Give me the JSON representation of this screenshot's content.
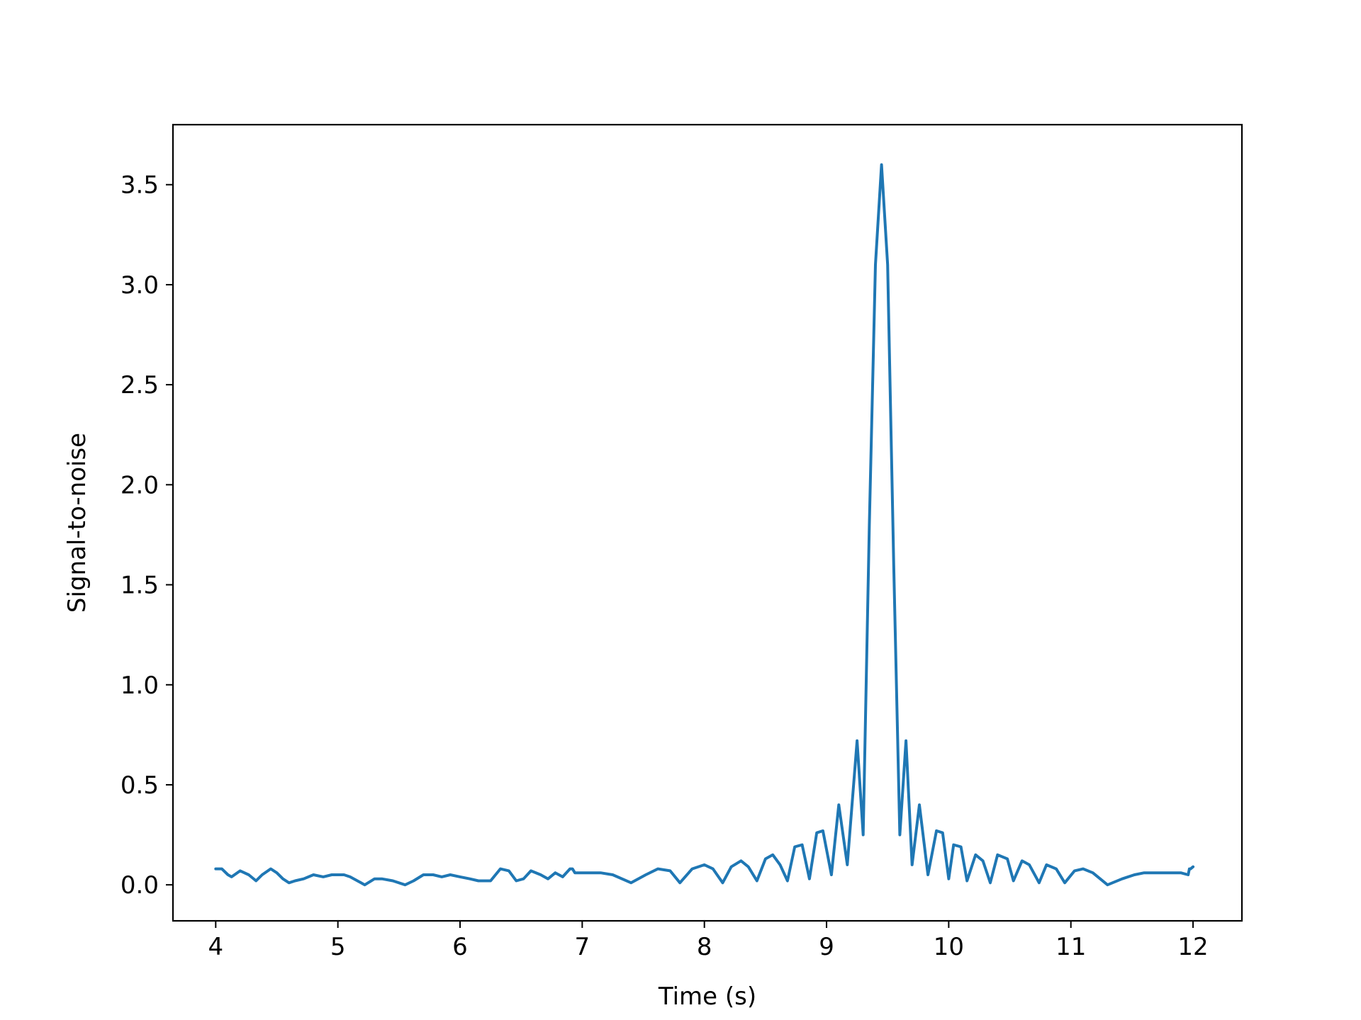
{
  "chart_data": {
    "type": "line",
    "title": "",
    "xlabel": "Time (s)",
    "ylabel": "Signal-to-noise",
    "xlim": [
      3.65,
      12.4
    ],
    "ylim": [
      -0.18,
      3.8
    ],
    "xticks": [
      4,
      5,
      6,
      7,
      8,
      9,
      10,
      11,
      12
    ],
    "yticks": [
      0.0,
      0.5,
      1.0,
      1.5,
      2.0,
      2.5,
      3.0,
      3.5
    ],
    "xtick_labels": [
      "4",
      "5",
      "6",
      "7",
      "8",
      "9",
      "10",
      "11",
      "12"
    ],
    "ytick_labels": [
      "0.0",
      "0.5",
      "1.0",
      "1.5",
      "2.0",
      "2.5",
      "3.0",
      "3.5"
    ],
    "grid": false,
    "series_color": "#1f77b4",
    "series": [
      {
        "x": [
          4.0,
          4.05,
          4.1,
          4.13,
          4.2,
          4.27,
          4.33,
          4.38,
          4.45,
          4.5,
          4.55,
          4.6,
          4.65,
          4.72,
          4.8,
          4.88,
          4.95,
          5.0,
          5.05,
          5.1,
          5.16,
          5.22,
          5.3,
          5.36,
          5.45,
          5.55,
          5.62,
          5.7,
          5.78,
          5.85,
          5.92,
          6.0,
          6.08,
          6.15,
          6.25,
          6.33,
          6.4,
          6.46,
          6.52,
          6.58,
          6.66,
          6.72,
          6.78,
          6.84,
          6.9,
          6.92,
          6.94,
          6.95,
          7.05,
          7.15,
          7.25,
          7.4,
          7.52,
          7.62,
          7.72,
          7.8,
          7.9,
          8.0,
          8.07,
          8.15,
          8.22,
          8.3,
          8.36,
          8.43,
          8.5,
          8.56,
          8.62,
          8.68,
          8.74,
          8.8,
          8.86,
          8.92,
          8.97,
          9.04,
          9.1,
          9.17,
          9.25,
          9.3,
          9.35,
          9.4,
          9.45,
          9.5,
          9.55,
          9.6,
          9.65,
          9.7,
          9.76,
          9.83,
          9.9,
          9.95,
          10.0,
          10.04,
          10.1,
          10.15,
          10.22,
          10.28,
          10.34,
          10.4,
          10.48,
          10.53,
          10.6,
          10.66,
          10.74,
          10.8,
          10.88,
          10.95,
          11.03,
          11.1,
          11.18,
          11.3,
          11.42,
          11.52,
          11.6,
          11.7,
          11.8,
          11.9,
          11.96,
          11.97,
          11.98,
          12.0
        ],
        "y": [
          0.08,
          0.08,
          0.05,
          0.04,
          0.07,
          0.05,
          0.02,
          0.05,
          0.08,
          0.06,
          0.03,
          0.01,
          0.02,
          0.03,
          0.05,
          0.04,
          0.05,
          0.05,
          0.05,
          0.04,
          0.02,
          0.0,
          0.03,
          0.03,
          0.02,
          0.0,
          0.02,
          0.05,
          0.05,
          0.04,
          0.05,
          0.04,
          0.03,
          0.02,
          0.02,
          0.08,
          0.07,
          0.02,
          0.03,
          0.07,
          0.05,
          0.03,
          0.06,
          0.04,
          0.08,
          0.08,
          0.06,
          0.06,
          0.06,
          0.06,
          0.05,
          0.01,
          0.05,
          0.08,
          0.07,
          0.01,
          0.08,
          0.1,
          0.08,
          0.01,
          0.09,
          0.12,
          0.09,
          0.02,
          0.13,
          0.15,
          0.1,
          0.02,
          0.19,
          0.2,
          0.03,
          0.26,
          0.27,
          0.05,
          0.4,
          0.1,
          0.72,
          0.25,
          1.8,
          3.1,
          3.6,
          3.1,
          1.6,
          0.25,
          0.72,
          0.1,
          0.4,
          0.05,
          0.27,
          0.26,
          0.03,
          0.2,
          0.19,
          0.02,
          0.15,
          0.12,
          0.01,
          0.15,
          0.13,
          0.02,
          0.12,
          0.1,
          0.01,
          0.1,
          0.08,
          0.01,
          0.07,
          0.08,
          0.06,
          0.0,
          0.03,
          0.05,
          0.06,
          0.06,
          0.06,
          0.06,
          0.05,
          0.08,
          0.08,
          0.09
        ]
      }
    ]
  }
}
